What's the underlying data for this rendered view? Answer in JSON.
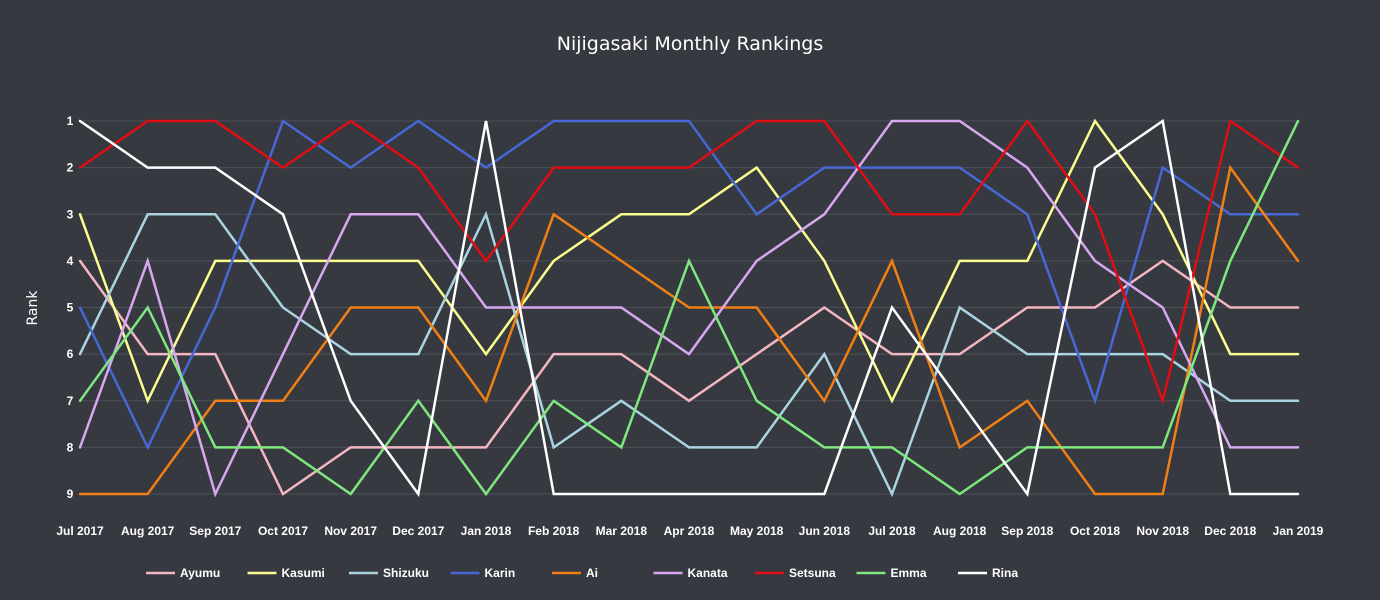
{
  "chart_data": {
    "type": "line",
    "title": "Nijigasaki Monthly Rankings",
    "xlabel": "",
    "ylabel": "Rank",
    "y_inverted": true,
    "ylim": [
      1,
      9
    ],
    "y_ticks": [
      1,
      2,
      3,
      4,
      5,
      6,
      7,
      8,
      9
    ],
    "grid": true,
    "legend_position": "bottom",
    "x": [
      "Jul 2017",
      "Aug 2017",
      "Sep 2017",
      "Oct 2017",
      "Nov 2017",
      "Dec 2017",
      "Jan 2018",
      "Feb 2018",
      "Mar 2018",
      "Apr 2018",
      "May 2018",
      "Jun 2018",
      "Jul 2018",
      "Aug 2018",
      "Sep 2018",
      "Oct 2018",
      "Nov 2018",
      "Dec 2018",
      "Jan 2019"
    ],
    "series": [
      {
        "name": "Ayumu",
        "color": "#f4b6c0",
        "values": [
          4,
          6,
          6,
          9,
          8,
          8,
          8,
          6,
          6,
          7,
          6,
          5,
          6,
          6,
          5,
          5,
          4,
          5,
          5
        ]
      },
      {
        "name": "Kasumi",
        "color": "#fbfd8f",
        "values": [
          3,
          7,
          4,
          4,
          4,
          4,
          6,
          4,
          3,
          3,
          2,
          4,
          7,
          4,
          4,
          1,
          3,
          6,
          6
        ]
      },
      {
        "name": "Shizuku",
        "color": "#a9d4e0",
        "values": [
          6,
          3,
          3,
          5,
          6,
          6,
          3,
          8,
          7,
          8,
          8,
          6,
          9,
          5,
          6,
          6,
          6,
          7,
          7
        ]
      },
      {
        "name": "Karin",
        "color": "#4768d5",
        "values": [
          5,
          8,
          5,
          1,
          2,
          1,
          2,
          1,
          1,
          1,
          3,
          2,
          2,
          2,
          3,
          7,
          2,
          3,
          3
        ]
      },
      {
        "name": "Ai",
        "color": "#f07f14",
        "values": [
          9,
          9,
          7,
          7,
          5,
          5,
          7,
          3,
          4,
          5,
          5,
          7,
          4,
          8,
          7,
          9,
          9,
          2,
          4
        ]
      },
      {
        "name": "Kanata",
        "color": "#d7a8f0",
        "values": [
          8,
          4,
          9,
          6,
          3,
          3,
          5,
          5,
          5,
          6,
          4,
          3,
          1,
          1,
          2,
          4,
          5,
          8,
          8
        ]
      },
      {
        "name": "Setsuna",
        "color": "#e00d12",
        "values": [
          2,
          1,
          1,
          2,
          1,
          2,
          4,
          2,
          2,
          2,
          1,
          1,
          3,
          3,
          1,
          3,
          7,
          1,
          2
        ]
      },
      {
        "name": "Emma",
        "color": "#7ee87e",
        "values": [
          7,
          5,
          8,
          8,
          9,
          7,
          9,
          7,
          8,
          4,
          7,
          8,
          8,
          9,
          8,
          8,
          8,
          4,
          1
        ]
      },
      {
        "name": "Rina",
        "color": "#ffffff",
        "values": [
          1,
          2,
          2,
          3,
          7,
          9,
          1,
          9,
          9,
          9,
          9,
          9,
          5,
          7,
          9,
          2,
          1,
          9,
          9
        ]
      }
    ]
  }
}
